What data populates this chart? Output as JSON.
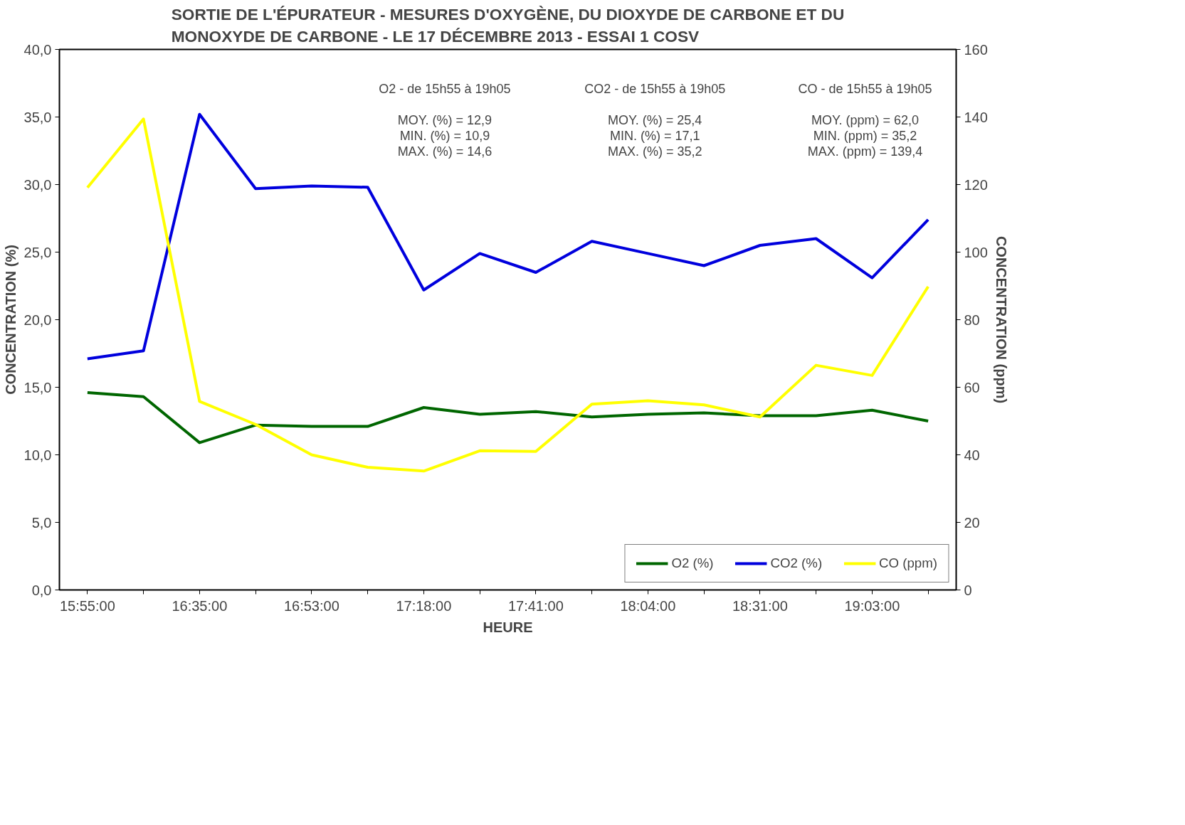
{
  "chart_data": {
    "type": "line",
    "title": "SORTIE DE L'ÉPURATEUR - MESURES D'OXYGÈNE, DU DIOXYDE DE CARBONE ET DU MONOXYDE DE CARBONE - LE 17 DÉCEMBRE 2013 - ESSAI 1 COSV",
    "xlabel": "HEURE",
    "ylabel": "CONCENTRATION (%)",
    "y2label": "CONCENTRATION (ppm)",
    "categories": [
      "15:55:00",
      null,
      "16:35:00",
      null,
      "16:53:00",
      null,
      "17:18:00",
      null,
      "17:41:00",
      null,
      "18:04:00",
      null,
      "18:31:00",
      null,
      "19:03:00",
      null
    ],
    "series": [
      {
        "name": "O2 (%)",
        "color": "#006600",
        "values": [
          14.6,
          14.3,
          10.9,
          12.2,
          12.1,
          12.1,
          13.5,
          13.0,
          13.2,
          12.8,
          13.0,
          13.1,
          12.9,
          12.9,
          13.3,
          12.5
        ]
      },
      {
        "name": "CO2 (%)",
        "color": "#0000dd",
        "values": [
          17.1,
          17.7,
          35.2,
          29.7,
          29.9,
          29.8,
          22.2,
          24.9,
          23.5,
          25.8,
          24.9,
          24.0,
          25.5,
          26.0,
          23.1,
          27.4
        ]
      },
      {
        "name": "CO (ppm)",
        "color": "#ffff00",
        "axis": "y2",
        "values": [
          119.1,
          139.4,
          55.8,
          49.0,
          40.0,
          36.3,
          35.2,
          41.2,
          41.0,
          55.0,
          56.0,
          54.8,
          51.2,
          66.5,
          63.5,
          89.8
        ]
      }
    ],
    "ylim": [
      0,
      40
    ],
    "yticks": [
      {
        "value": 0,
        "label": "0,0"
      },
      {
        "value": 5,
        "label": "5,0"
      },
      {
        "value": 10,
        "label": "10,0"
      },
      {
        "value": 15,
        "label": "15,0"
      },
      {
        "value": 20,
        "label": "20,0"
      },
      {
        "value": 25,
        "label": "25,0"
      },
      {
        "value": 30,
        "label": "30,0"
      },
      {
        "value": 35,
        "label": "35,0"
      },
      {
        "value": 40,
        "label": "40,0"
      }
    ],
    "y2lim": [
      0,
      160
    ],
    "y2ticks": [
      0,
      20,
      40,
      60,
      80,
      100,
      120,
      140,
      160
    ],
    "annotations": [
      "O2 - de 15h55 à 19h05\n\nMOY. (%) = 12,9\nMIN. (%) = 10,9\nMAX. (%) = 14,6",
      "CO2 - de 15h55 à 19h05\n\nMOY. (%) = 25,4\nMIN. (%) = 17,1\nMAX. (%) = 35,2",
      "CO - de 15h55 à 19h05\n\nMOY. (ppm) = 62,0\nMIN. (ppm) = 35,2\nMAX. (ppm) = 139,4"
    ],
    "grid": false,
    "legend": "bottom right",
    "marker": "none",
    "line_style": "solid"
  }
}
